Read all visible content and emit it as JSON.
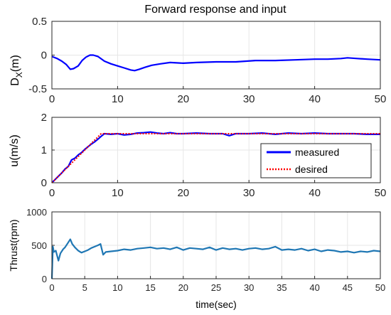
{
  "chart_data": [
    {
      "type": "line",
      "title": "Forward response and input",
      "ylabel_main": "D",
      "ylabel_sub": "X",
      "ylabel_unit": "(m)",
      "xlabel": "",
      "xlim": [
        0,
        50
      ],
      "ylim": [
        -0.5,
        0.5
      ],
      "xticks": [
        "0",
        "10",
        "20",
        "30",
        "40",
        "50"
      ],
      "yticks": [
        "-0.5",
        "0",
        "0.5"
      ],
      "grid": true,
      "colors": {
        "series": "#0000ff"
      },
      "series": [
        {
          "x": [
            0,
            0.8,
            1.5,
            2.2,
            2.8,
            3.3,
            4.0,
            4.6,
            5.2,
            5.8,
            6.3,
            7.0,
            8.0,
            9.0,
            10.0,
            11.0,
            12.0,
            12.6,
            13.3,
            14.2,
            15.2,
            16.5,
            18.0,
            20.0,
            22.0,
            25.0,
            28.0,
            31.0,
            34.0,
            37.0,
            40.0,
            42.0,
            44.0,
            45.0,
            46.5,
            48.0,
            50.0
          ],
          "y": [
            -0.02,
            -0.05,
            -0.09,
            -0.14,
            -0.21,
            -0.2,
            -0.16,
            -0.08,
            -0.03,
            0.0,
            0.0,
            -0.02,
            -0.09,
            -0.13,
            -0.16,
            -0.19,
            -0.22,
            -0.23,
            -0.21,
            -0.18,
            -0.15,
            -0.13,
            -0.11,
            -0.12,
            -0.11,
            -0.1,
            -0.1,
            -0.08,
            -0.08,
            -0.07,
            -0.06,
            -0.06,
            -0.05,
            -0.04,
            -0.05,
            -0.06,
            -0.07
          ]
        }
      ]
    },
    {
      "type": "line",
      "ylabel": "u(m/s)",
      "xlabel": "",
      "xlim": [
        0,
        50
      ],
      "ylim": [
        0,
        2
      ],
      "xticks": [
        "0",
        "10",
        "20",
        "30",
        "40",
        "50"
      ],
      "yticks": [
        "0",
        "1",
        "2"
      ],
      "grid": true,
      "legend_position": "right",
      "series": [
        {
          "name": "measured",
          "color": "#0000ff",
          "style": "solid",
          "x": [
            0,
            0.5,
            1.0,
            1.5,
            2.0,
            2.5,
            3.0,
            3.5,
            4.0,
            4.5,
            5.0,
            5.5,
            6.0,
            6.5,
            7.0,
            7.5,
            8.0,
            9.0,
            10.0,
            11.0,
            12.0,
            13.0,
            14.0,
            15.0,
            16.0,
            17.0,
            18.0,
            19.0,
            20.0,
            22.0,
            24.0,
            26.0,
            27.0,
            28.0,
            30.0,
            32.0,
            34.0,
            36.0,
            38.0,
            40.0,
            42.0,
            44.0,
            46.0,
            48.0,
            50.0
          ],
          "y": [
            0.0,
            0.1,
            0.2,
            0.3,
            0.42,
            0.5,
            0.7,
            0.75,
            0.85,
            0.92,
            1.02,
            1.1,
            1.18,
            1.25,
            1.33,
            1.42,
            1.5,
            1.48,
            1.5,
            1.46,
            1.48,
            1.52,
            1.53,
            1.55,
            1.52,
            1.5,
            1.53,
            1.5,
            1.5,
            1.52,
            1.5,
            1.5,
            1.44,
            1.5,
            1.5,
            1.52,
            1.48,
            1.52,
            1.5,
            1.52,
            1.5,
            1.5,
            1.5,
            1.48,
            1.48
          ]
        },
        {
          "name": "desired",
          "color": "#ff0000",
          "style": "dotted",
          "x": [
            0,
            7.5,
            50
          ],
          "y": [
            0,
            1.5,
            1.5
          ]
        }
      ]
    },
    {
      "type": "line",
      "ylabel": "Thrust(rpm)",
      "xlabel": "time(sec)",
      "xlim": [
        0,
        50
      ],
      "ylim": [
        0,
        1000
      ],
      "xticks": [
        "0",
        "5",
        "10",
        "15",
        "20",
        "25",
        "30",
        "35",
        "40",
        "45",
        "50"
      ],
      "yticks": [
        "0",
        "500",
        "1000"
      ],
      "grid": true,
      "colors": {
        "series": "#1f77b4"
      },
      "series": [
        {
          "x": [
            0,
            0.15,
            0.3,
            0.6,
            1.0,
            1.3,
            1.7,
            2.0,
            2.4,
            2.8,
            3.1,
            3.5,
            4.0,
            4.5,
            5.0,
            5.5,
            6.0,
            6.5,
            7.0,
            7.4,
            7.8,
            8.2,
            9.0,
            10.0,
            11.0,
            12.0,
            13.0,
            14.0,
            15.0,
            16.0,
            17.0,
            18.0,
            19.0,
            20.0,
            21.0,
            22.0,
            23.0,
            24.0,
            25.0,
            26.0,
            27.0,
            28.0,
            29.0,
            30.0,
            31.0,
            32.0,
            33.0,
            34.0,
            35.0,
            36.0,
            37.0,
            38.0,
            39.0,
            40.0,
            41.0,
            42.0,
            43.0,
            44.0,
            45.0,
            46.0,
            47.0,
            48.0,
            49.0,
            50.0
          ],
          "y": [
            0,
            480,
            400,
            420,
            270,
            380,
            440,
            470,
            530,
            590,
            520,
            470,
            420,
            390,
            410,
            430,
            460,
            480,
            500,
            520,
            360,
            400,
            410,
            420,
            440,
            430,
            450,
            460,
            470,
            450,
            460,
            440,
            470,
            430,
            460,
            450,
            440,
            470,
            430,
            460,
            440,
            450,
            430,
            450,
            460,
            440,
            450,
            480,
            430,
            440,
            430,
            450,
            420,
            440,
            410,
            430,
            420,
            400,
            410,
            390,
            410,
            400,
            420,
            410
          ]
        }
      ]
    }
  ]
}
